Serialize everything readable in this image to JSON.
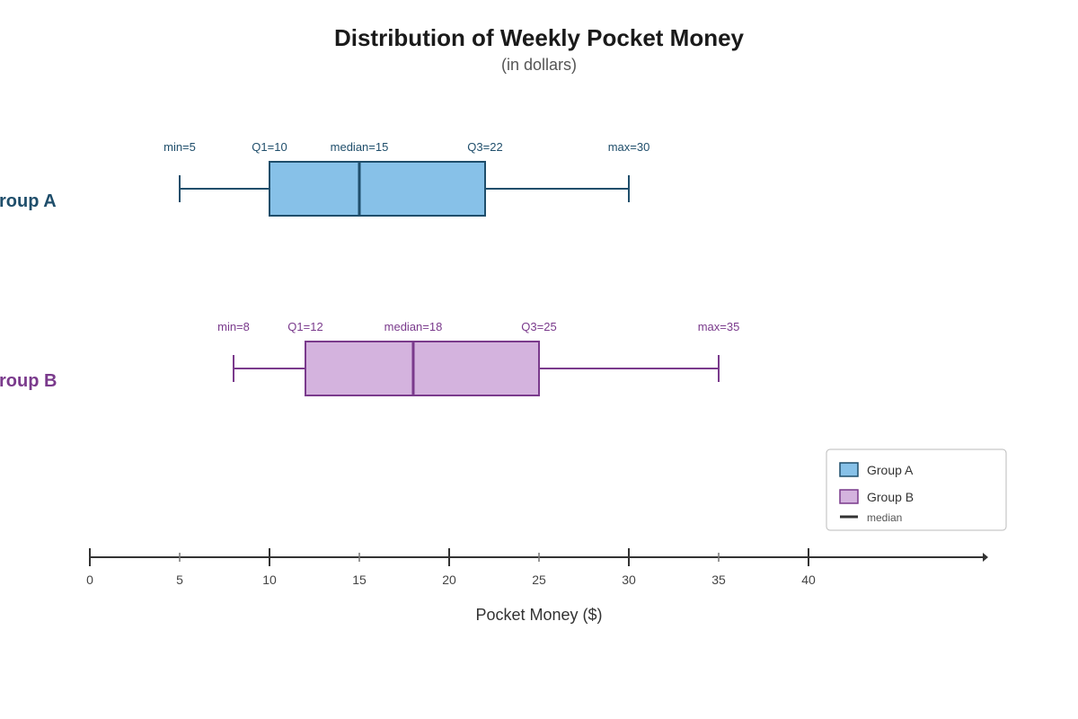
{
  "chart_data": {
    "type": "boxplot",
    "title": "Distribution of Weekly Pocket Money",
    "subtitle": "(in dollars)",
    "xlabel": "Pocket Money ($)",
    "xlim": [
      0,
      50
    ],
    "major_ticks": [
      0,
      10,
      20,
      30,
      40
    ],
    "minor_ticks": [
      5,
      15,
      25,
      35
    ],
    "tick_labels": [
      "0",
      "5",
      "10",
      "15",
      "20",
      "25",
      "30",
      "35",
      "40"
    ],
    "series": [
      {
        "name": "Group A",
        "row_label": "roup A",
        "min": 5,
        "q1": 10,
        "median": 15,
        "q3": 22,
        "max": 30,
        "labels": {
          "min": "min=5",
          "q1": "Q1=10",
          "median": "median=15",
          "q3": "Q3=22",
          "max": "max=30"
        },
        "fill": "#87c1e8",
        "stroke": "#1f4e6b"
      },
      {
        "name": "Group B",
        "row_label": "roup B",
        "min": 8,
        "q1": 12,
        "median": 18,
        "q3": 25,
        "max": 35,
        "labels": {
          "min": "min=8",
          "q1": "Q1=12",
          "median": "median=18",
          "q3": "Q3=25",
          "max": "max=35"
        },
        "fill": "#d4b3de",
        "stroke": "#7a3a8c"
      }
    ],
    "legend": {
      "position": "bottom-right",
      "items": [
        "Group A",
        "Group B"
      ],
      "median_label": "median"
    }
  }
}
